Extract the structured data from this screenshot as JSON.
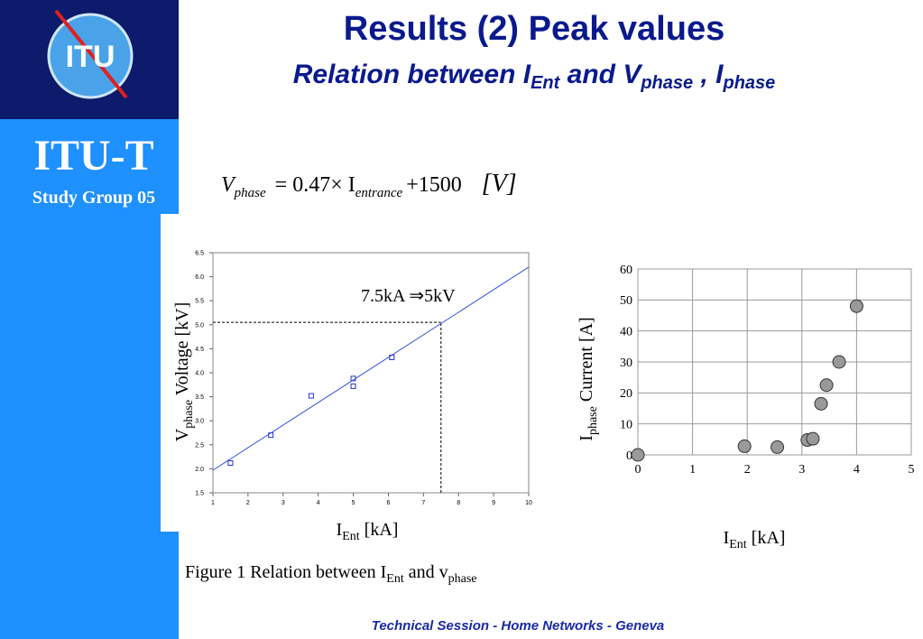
{
  "slide": {
    "logo": "ITU",
    "org": "ITU-T",
    "group": "Study Group 05",
    "title": "Results (2) Peak values",
    "subtitle": [
      "Relation between I",
      "Ent",
      " and V",
      "phase",
      " , I",
      "phase"
    ],
    "equation": [
      "V",
      "phase",
      "= 0.47× I",
      "entrance",
      "+1500",
      "[V]"
    ],
    "caption": [
      "Figure 1 Relation between I",
      "Ent",
      " and v",
      "phase"
    ],
    "footer": "Technical Session - Home Networks - Geneva"
  },
  "chart_data": [
    {
      "type": "scatter",
      "xlabel": [
        "I",
        "Ent",
        " [kA]"
      ],
      "ylabel": [
        "V",
        "phase",
        " Voltage [kV]"
      ],
      "annotation": "7.5kA ⇒5kV",
      "xlim": [
        1,
        10
      ],
      "xticks": [
        1,
        2,
        3,
        4,
        5,
        6,
        7,
        8,
        9,
        10
      ],
      "ylim": [
        1.5,
        6.5
      ],
      "yticks": [
        1.5,
        {
          "value": 2,
          "label": "2.0"
        },
        2.5,
        {
          "value": 3,
          "label": "3.0"
        },
        3.5,
        {
          "value": 4,
          "label": "4.0"
        },
        4.5,
        {
          "value": 5,
          "label": "5.0"
        },
        5.5,
        {
          "value": 6,
          "label": "6.0"
        },
        6.5
      ],
      "grid": false,
      "ref_x": 7.5,
      "ref_y": 5.05,
      "series": [
        {
          "color": "#2233cc",
          "marker": "square",
          "x": [
            1.5,
            2.65,
            3.8,
            5.0,
            5.0,
            6.1
          ],
          "values": [
            2.12,
            2.7,
            3.52,
            3.88,
            3.72,
            4.32
          ]
        },
        {
          "color": "#3355dd",
          "line": true,
          "x": [
            1,
            10
          ],
          "values": [
            1.97,
            6.2
          ]
        }
      ]
    },
    {
      "type": "scatter",
      "xlabel": [
        "I",
        "Ent",
        " [kA]"
      ],
      "ylabel": [
        "I",
        "phase",
        " Current  [A]"
      ],
      "xlim": [
        0,
        5
      ],
      "xticks": [
        0,
        1,
        2,
        3,
        4,
        5
      ],
      "ylim": [
        0,
        60
      ],
      "yticks": [
        0,
        10,
        20,
        30,
        40,
        50,
        60
      ],
      "grid": true,
      "series": [
        {
          "color": "#999999",
          "marker": "circle",
          "x": [
            0,
            1.95,
            2.55,
            3.1,
            3.2,
            3.35,
            3.45,
            3.68,
            4.0
          ],
          "values": [
            0,
            2.8,
            2.5,
            4.8,
            5.2,
            16.5,
            22.5,
            30,
            48
          ]
        }
      ]
    }
  ]
}
